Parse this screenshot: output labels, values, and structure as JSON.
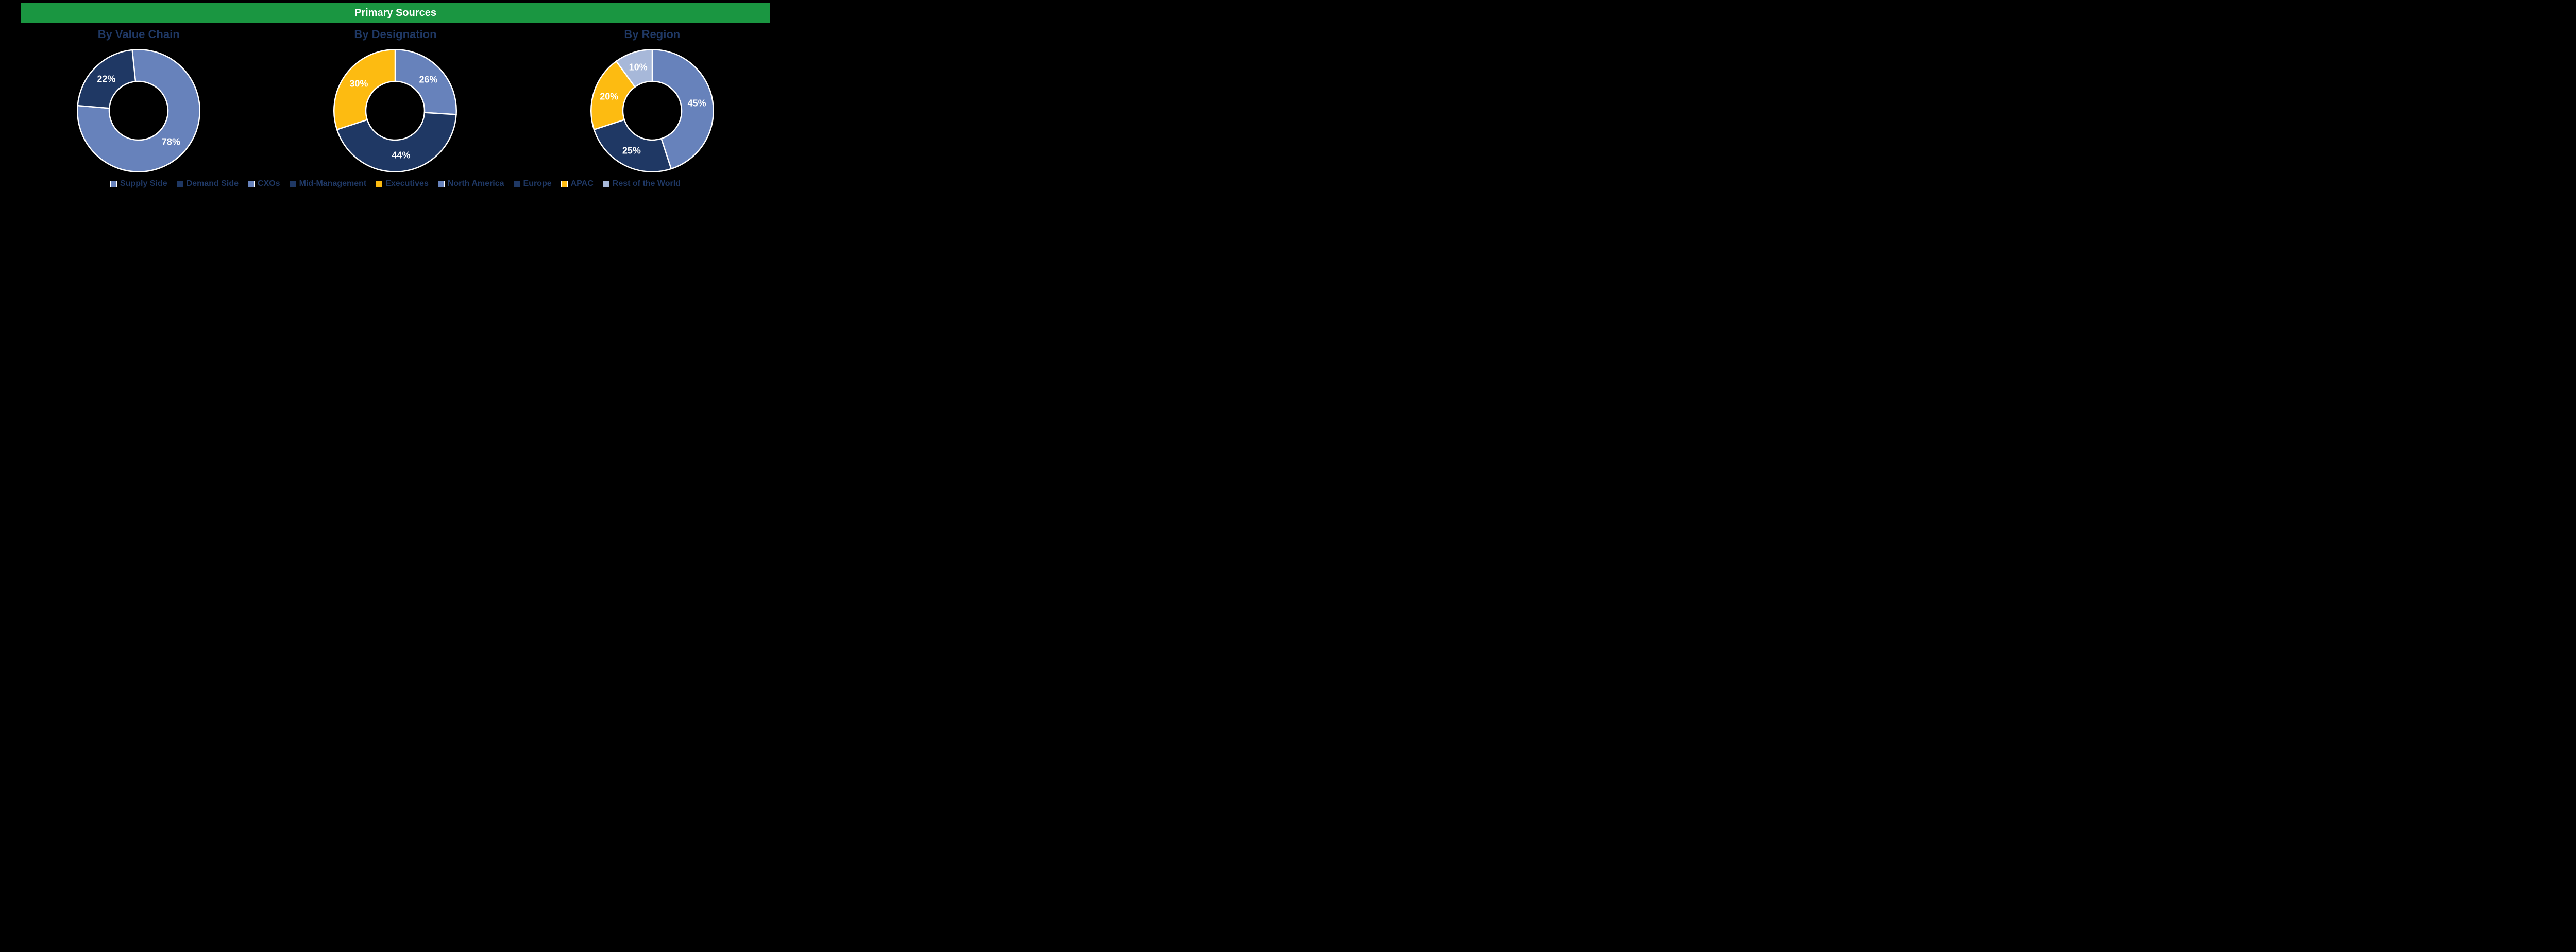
{
  "header": {
    "title": "Primary Sources",
    "background_color": "#1a9641",
    "text_color": "#ffffff"
  },
  "background_color": "#000000",
  "title_text_color": "#1f3864",
  "legend_text_color": "#1f3864",
  "charts": [
    {
      "id": "value-chain",
      "title": "By Value Chain",
      "type": "donut",
      "inner_radius_pct": 48,
      "slice_border_color": "#ffffff",
      "slice_border_width": 2,
      "start_angle_deg": -6,
      "slices": [
        {
          "label": "Supply Side",
          "value": 78,
          "pct_text": "78%",
          "color": "#6782bb"
        },
        {
          "label": "Demand Side",
          "value": 22,
          "pct_text": "22%",
          "color": "#1f3864"
        }
      ]
    },
    {
      "id": "designation",
      "title": "By Designation",
      "type": "donut",
      "inner_radius_pct": 48,
      "slice_border_color": "#ffffff",
      "slice_border_width": 2,
      "start_angle_deg": 0,
      "slices": [
        {
          "label": "CXOs",
          "value": 26,
          "pct_text": "26%",
          "color": "#6782bb"
        },
        {
          "label": "Mid-Management",
          "value": 44,
          "pct_text": "44%",
          "color": "#1f3864"
        },
        {
          "label": "Executives",
          "value": 30,
          "pct_text": "30%",
          "color": "#fdbb11"
        }
      ]
    },
    {
      "id": "region",
      "title": "By Region",
      "type": "donut",
      "inner_radius_pct": 48,
      "slice_border_color": "#ffffff",
      "slice_border_width": 2,
      "start_angle_deg": 0,
      "slices": [
        {
          "label": "North America",
          "value": 45,
          "pct_text": "45%",
          "color": "#6782bb"
        },
        {
          "label": "Europe",
          "value": 25,
          "pct_text": "25%",
          "color": "#1f3864"
        },
        {
          "label": "APAC",
          "value": 20,
          "pct_text": "20%",
          "color": "#fdbb11"
        },
        {
          "label": "Rest of the World",
          "value": 10,
          "pct_text": "10%",
          "color": "#a7b8d9"
        }
      ]
    }
  ]
}
